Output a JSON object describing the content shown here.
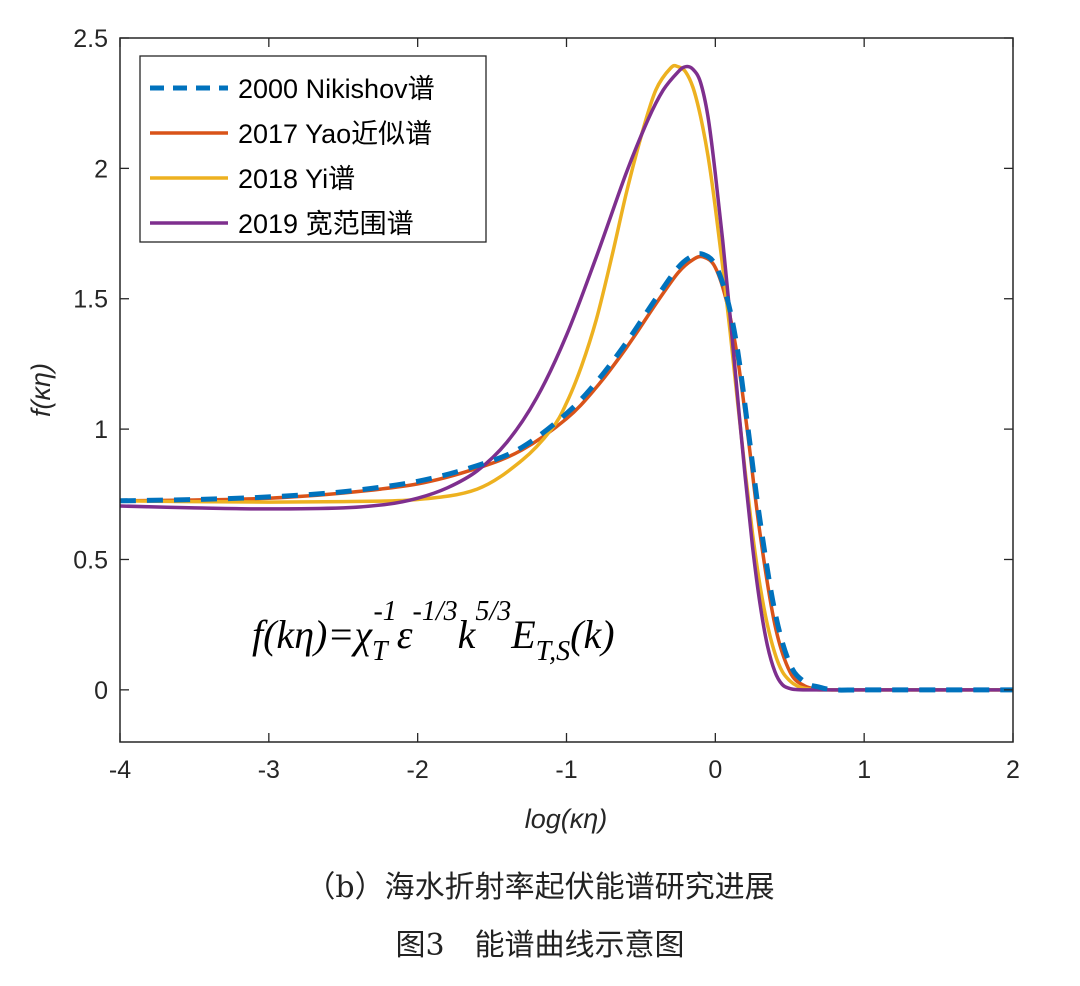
{
  "chart_data": {
    "type": "line",
    "xlabel": "log(κη)",
    "ylabel": "f(κη)",
    "xlim": [
      -4,
      2
    ],
    "ylim": [
      -0.2,
      2.5
    ],
    "xticks": [
      -4,
      -3,
      -2,
      -1,
      0,
      1,
      2
    ],
    "xtick_labels": [
      "-4",
      "-3",
      "-2",
      "-1",
      "0",
      "1",
      "2"
    ],
    "yticks": [
      0,
      0.5,
      1,
      1.5,
      2,
      2.5
    ],
    "ytick_labels": [
      "0",
      "0.5",
      "1",
      "1.5",
      "2",
      "2.5"
    ],
    "legend_position": "top-left",
    "annotation": {
      "parts": [
        "f(kη)=χ",
        "T",
        "-1",
        "ε",
        "-1/3",
        "k",
        "5/3",
        "E",
        "T,S",
        "(k)"
      ]
    },
    "series": [
      {
        "name": "2000 Nikishov谱",
        "color": "#0072BD",
        "style": "dashed",
        "x": [
          -4,
          -3.5,
          -3,
          -2.5,
          -2,
          -1.6,
          -1.3,
          -1.0,
          -0.8,
          -0.6,
          -0.4,
          -0.25,
          -0.15,
          -0.08,
          0.0,
          0.08,
          0.15,
          0.22,
          0.3,
          0.4,
          0.5,
          0.6,
          0.7,
          0.8,
          1.0,
          1.5,
          2.0
        ],
        "y": [
          0.725,
          0.73,
          0.74,
          0.76,
          0.8,
          0.86,
          0.93,
          1.06,
          1.18,
          1.33,
          1.5,
          1.62,
          1.665,
          1.67,
          1.63,
          1.5,
          1.3,
          1.0,
          0.65,
          0.3,
          0.1,
          0.03,
          0.01,
          0.0,
          0.0,
          0.0,
          0.0
        ]
      },
      {
        "name": "2017 Yao近似谱",
        "color": "#D95319",
        "style": "solid",
        "x": [
          -4,
          -3.5,
          -3,
          -2.5,
          -2,
          -1.6,
          -1.3,
          -1.0,
          -0.8,
          -0.6,
          -0.4,
          -0.25,
          -0.15,
          -0.08,
          0.0,
          0.08,
          0.15,
          0.22,
          0.3,
          0.4,
          0.5,
          0.6,
          0.7,
          0.8,
          1.0,
          1.5,
          2.0
        ],
        "y": [
          0.725,
          0.728,
          0.735,
          0.755,
          0.79,
          0.85,
          0.92,
          1.04,
          1.16,
          1.31,
          1.48,
          1.6,
          1.65,
          1.66,
          1.62,
          1.48,
          1.27,
          0.97,
          0.6,
          0.25,
          0.07,
          0.015,
          0.003,
          0.0,
          0.0,
          0.0,
          0.0
        ]
      },
      {
        "name": "2018 Yi谱",
        "color": "#EDB120",
        "style": "solid",
        "x": [
          -4,
          -3.5,
          -3,
          -2.5,
          -2,
          -1.6,
          -1.3,
          -1.1,
          -1.0,
          -0.9,
          -0.8,
          -0.7,
          -0.6,
          -0.5,
          -0.4,
          -0.3,
          -0.25,
          -0.2,
          -0.15,
          -0.1,
          -0.05,
          0.0,
          0.05,
          0.1,
          0.15,
          0.2,
          0.25,
          0.3,
          0.35,
          0.4,
          0.45,
          0.5,
          0.55,
          0.6,
          0.65,
          0.7,
          0.8,
          1.0,
          1.5,
          2.0
        ],
        "y": [
          0.725,
          0.722,
          0.72,
          0.722,
          0.73,
          0.77,
          0.88,
          1.0,
          1.1,
          1.24,
          1.42,
          1.65,
          1.9,
          2.12,
          2.3,
          2.385,
          2.39,
          2.37,
          2.31,
          2.2,
          2.05,
          1.85,
          1.62,
          1.37,
          1.1,
          0.84,
          0.6,
          0.4,
          0.25,
          0.14,
          0.07,
          0.035,
          0.015,
          0.006,
          0.002,
          0.0,
          0.0,
          0.0,
          0.0,
          0.0
        ]
      },
      {
        "name": "2019 宽范围谱",
        "color": "#7E2F8E",
        "style": "solid",
        "x": [
          -4,
          -3.5,
          -3,
          -2.5,
          -2.2,
          -2.0,
          -1.8,
          -1.6,
          -1.4,
          -1.2,
          -1.0,
          -0.8,
          -0.6,
          -0.45,
          -0.35,
          -0.25,
          -0.2,
          -0.15,
          -0.1,
          -0.05,
          0.0,
          0.05,
          0.1,
          0.15,
          0.2,
          0.25,
          0.3,
          0.35,
          0.4,
          0.45,
          0.5,
          0.55,
          0.6,
          0.7,
          1.0,
          1.5,
          2.0
        ],
        "y": [
          0.705,
          0.698,
          0.694,
          0.698,
          0.712,
          0.735,
          0.775,
          0.84,
          0.95,
          1.12,
          1.36,
          1.66,
          1.98,
          2.19,
          2.3,
          2.37,
          2.39,
          2.38,
          2.33,
          2.2,
          1.98,
          1.72,
          1.43,
          1.12,
          0.82,
          0.55,
          0.33,
          0.17,
          0.07,
          0.02,
          0.005,
          0.001,
          0.0,
          0.0,
          0.0,
          0.0,
          0.0
        ]
      }
    ]
  },
  "captions": {
    "subfigure": "（b）海水折射率起伏能谱研究进展",
    "figure": "图3　能谱曲线示意图"
  }
}
